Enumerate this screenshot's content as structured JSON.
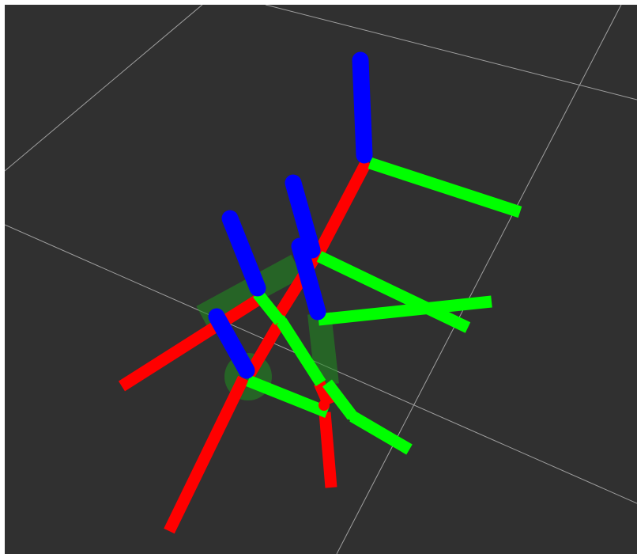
{
  "viewport": {
    "background_color": "#303030",
    "frame_color": "#ffffff",
    "grid_color": "#a0a0a0"
  },
  "axis_colors": {
    "x_axis": "#ff0000",
    "y_axis": "#00ff00",
    "z_axis": "#0000ff"
  },
  "overlay_color": "#1f8f1f"
}
